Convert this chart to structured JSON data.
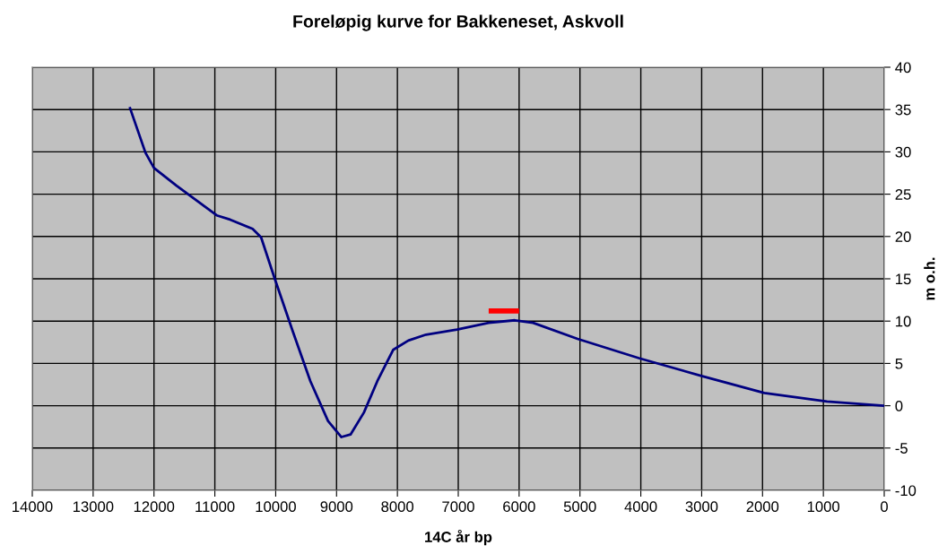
{
  "chart_data": {
    "type": "line",
    "title": "Foreløpig kurve for Bakkeneset, Askvoll",
    "xlabel": "14C år bp",
    "ylabel": "m o.h.",
    "xlim": [
      14000,
      0
    ],
    "xticks": [
      14000,
      13000,
      12000,
      11000,
      10000,
      9000,
      8000,
      7000,
      6000,
      5000,
      4000,
      3000,
      2000,
      1000,
      0
    ],
    "ylim": [
      -10,
      40
    ],
    "yticks": [
      -10,
      -5,
      0,
      5,
      10,
      15,
      20,
      25,
      30,
      35,
      40
    ],
    "grid": true,
    "legend": false,
    "marker": "none",
    "line_style": "solid",
    "series": [
      {
        "color": "#000080",
        "x": [
          12400,
          12140,
          12000,
          11630,
          10970,
          10750,
          10380,
          10240,
          10020,
          9720,
          9430,
          9140,
          8920,
          8770,
          8550,
          8330,
          8070,
          7820,
          7530,
          7020,
          6500,
          6070,
          5770,
          5040,
          4020,
          2990,
          1970,
          940,
          0
        ],
        "values": [
          35.3,
          29.9,
          28.1,
          26.0,
          22.5,
          22.0,
          20.9,
          19.9,
          15.1,
          8.8,
          2.9,
          -1.8,
          -3.7,
          -3.4,
          -0.8,
          2.9,
          6.6,
          7.7,
          8.4,
          9.0,
          9.8,
          10.1,
          9.8,
          7.9,
          5.6,
          3.5,
          1.5,
          0.5,
          0.0
        ]
      },
      {
        "color": "#ff0000",
        "x": [
          6500,
          6000
        ],
        "values": [
          11.2,
          11.2
        ]
      }
    ]
  }
}
